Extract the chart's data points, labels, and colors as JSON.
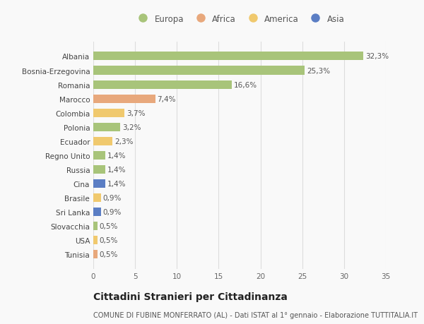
{
  "countries": [
    "Albania",
    "Bosnia-Erzegovina",
    "Romania",
    "Marocco",
    "Colombia",
    "Polonia",
    "Ecuador",
    "Regno Unito",
    "Russia",
    "Cina",
    "Brasile",
    "Sri Lanka",
    "Slovacchia",
    "USA",
    "Tunisia"
  ],
  "values": [
    32.3,
    25.3,
    16.6,
    7.4,
    3.7,
    3.2,
    2.3,
    1.4,
    1.4,
    1.4,
    0.9,
    0.9,
    0.5,
    0.5,
    0.5
  ],
  "labels": [
    "32,3%",
    "25,3%",
    "16,6%",
    "7,4%",
    "3,7%",
    "3,2%",
    "2,3%",
    "1,4%",
    "1,4%",
    "1,4%",
    "0,9%",
    "0,9%",
    "0,5%",
    "0,5%",
    "0,5%"
  ],
  "bar_colors": [
    "#a8c47a",
    "#a8c47a",
    "#a8c47a",
    "#e8a87c",
    "#f0c96e",
    "#a8c47a",
    "#f0c96e",
    "#a8c47a",
    "#a8c47a",
    "#5b7ec4",
    "#f0c96e",
    "#5b7ec4",
    "#a8c47a",
    "#f0c96e",
    "#e8a87c"
  ],
  "legend_labels": [
    "Europa",
    "Africa",
    "America",
    "Asia"
  ],
  "legend_colors": [
    "#a8c47a",
    "#e8a87c",
    "#f0c96e",
    "#5b7ec4"
  ],
  "xlim": [
    0,
    35
  ],
  "xticks": [
    0,
    5,
    10,
    15,
    20,
    25,
    30,
    35
  ],
  "title": "Cittadini Stranieri per Cittadinanza",
  "subtitle": "COMUNE DI FUBINE MONFERRATO (AL) - Dati ISTAT al 1° gennaio - Elaborazione TUTTITALIA.IT",
  "bg_color": "#f9f9f9",
  "grid_color": "#dddddd",
  "bar_height": 0.6,
  "label_fontsize": 7.5,
  "tick_fontsize": 7.5,
  "title_fontsize": 10,
  "subtitle_fontsize": 7.0,
  "legend_fontsize": 8.5
}
